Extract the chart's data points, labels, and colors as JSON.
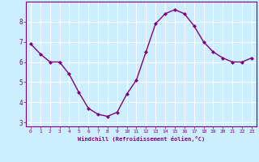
{
  "x": [
    0,
    1,
    2,
    3,
    4,
    5,
    6,
    7,
    8,
    9,
    10,
    11,
    12,
    13,
    14,
    15,
    16,
    17,
    18,
    19,
    20,
    21,
    22,
    23
  ],
  "y": [
    6.9,
    6.4,
    6.0,
    6.0,
    5.4,
    4.5,
    3.7,
    3.4,
    3.3,
    3.5,
    4.4,
    5.1,
    6.5,
    7.9,
    8.4,
    8.6,
    8.4,
    7.8,
    7.0,
    6.5,
    6.2,
    6.0,
    6.0,
    6.2
  ],
  "line_color": "#800080",
  "marker": "D",
  "marker_size": 2.0,
  "bg_color": "#cceeff",
  "grid_color": "#ffffff",
  "xlabel": "Windchill (Refroidissement éolien,°C)",
  "xlim": [
    -0.5,
    23.5
  ],
  "ylim": [
    2.8,
    9.0
  ],
  "yticks": [
    3,
    4,
    5,
    6,
    7,
    8
  ],
  "xticks": [
    0,
    1,
    2,
    3,
    4,
    5,
    6,
    7,
    8,
    9,
    10,
    11,
    12,
    13,
    14,
    15,
    16,
    17,
    18,
    19,
    20,
    21,
    22,
    23
  ],
  "tick_color": "#800080",
  "label_color": "#800080",
  "spine_color": "#800080",
  "line_width": 1.0
}
